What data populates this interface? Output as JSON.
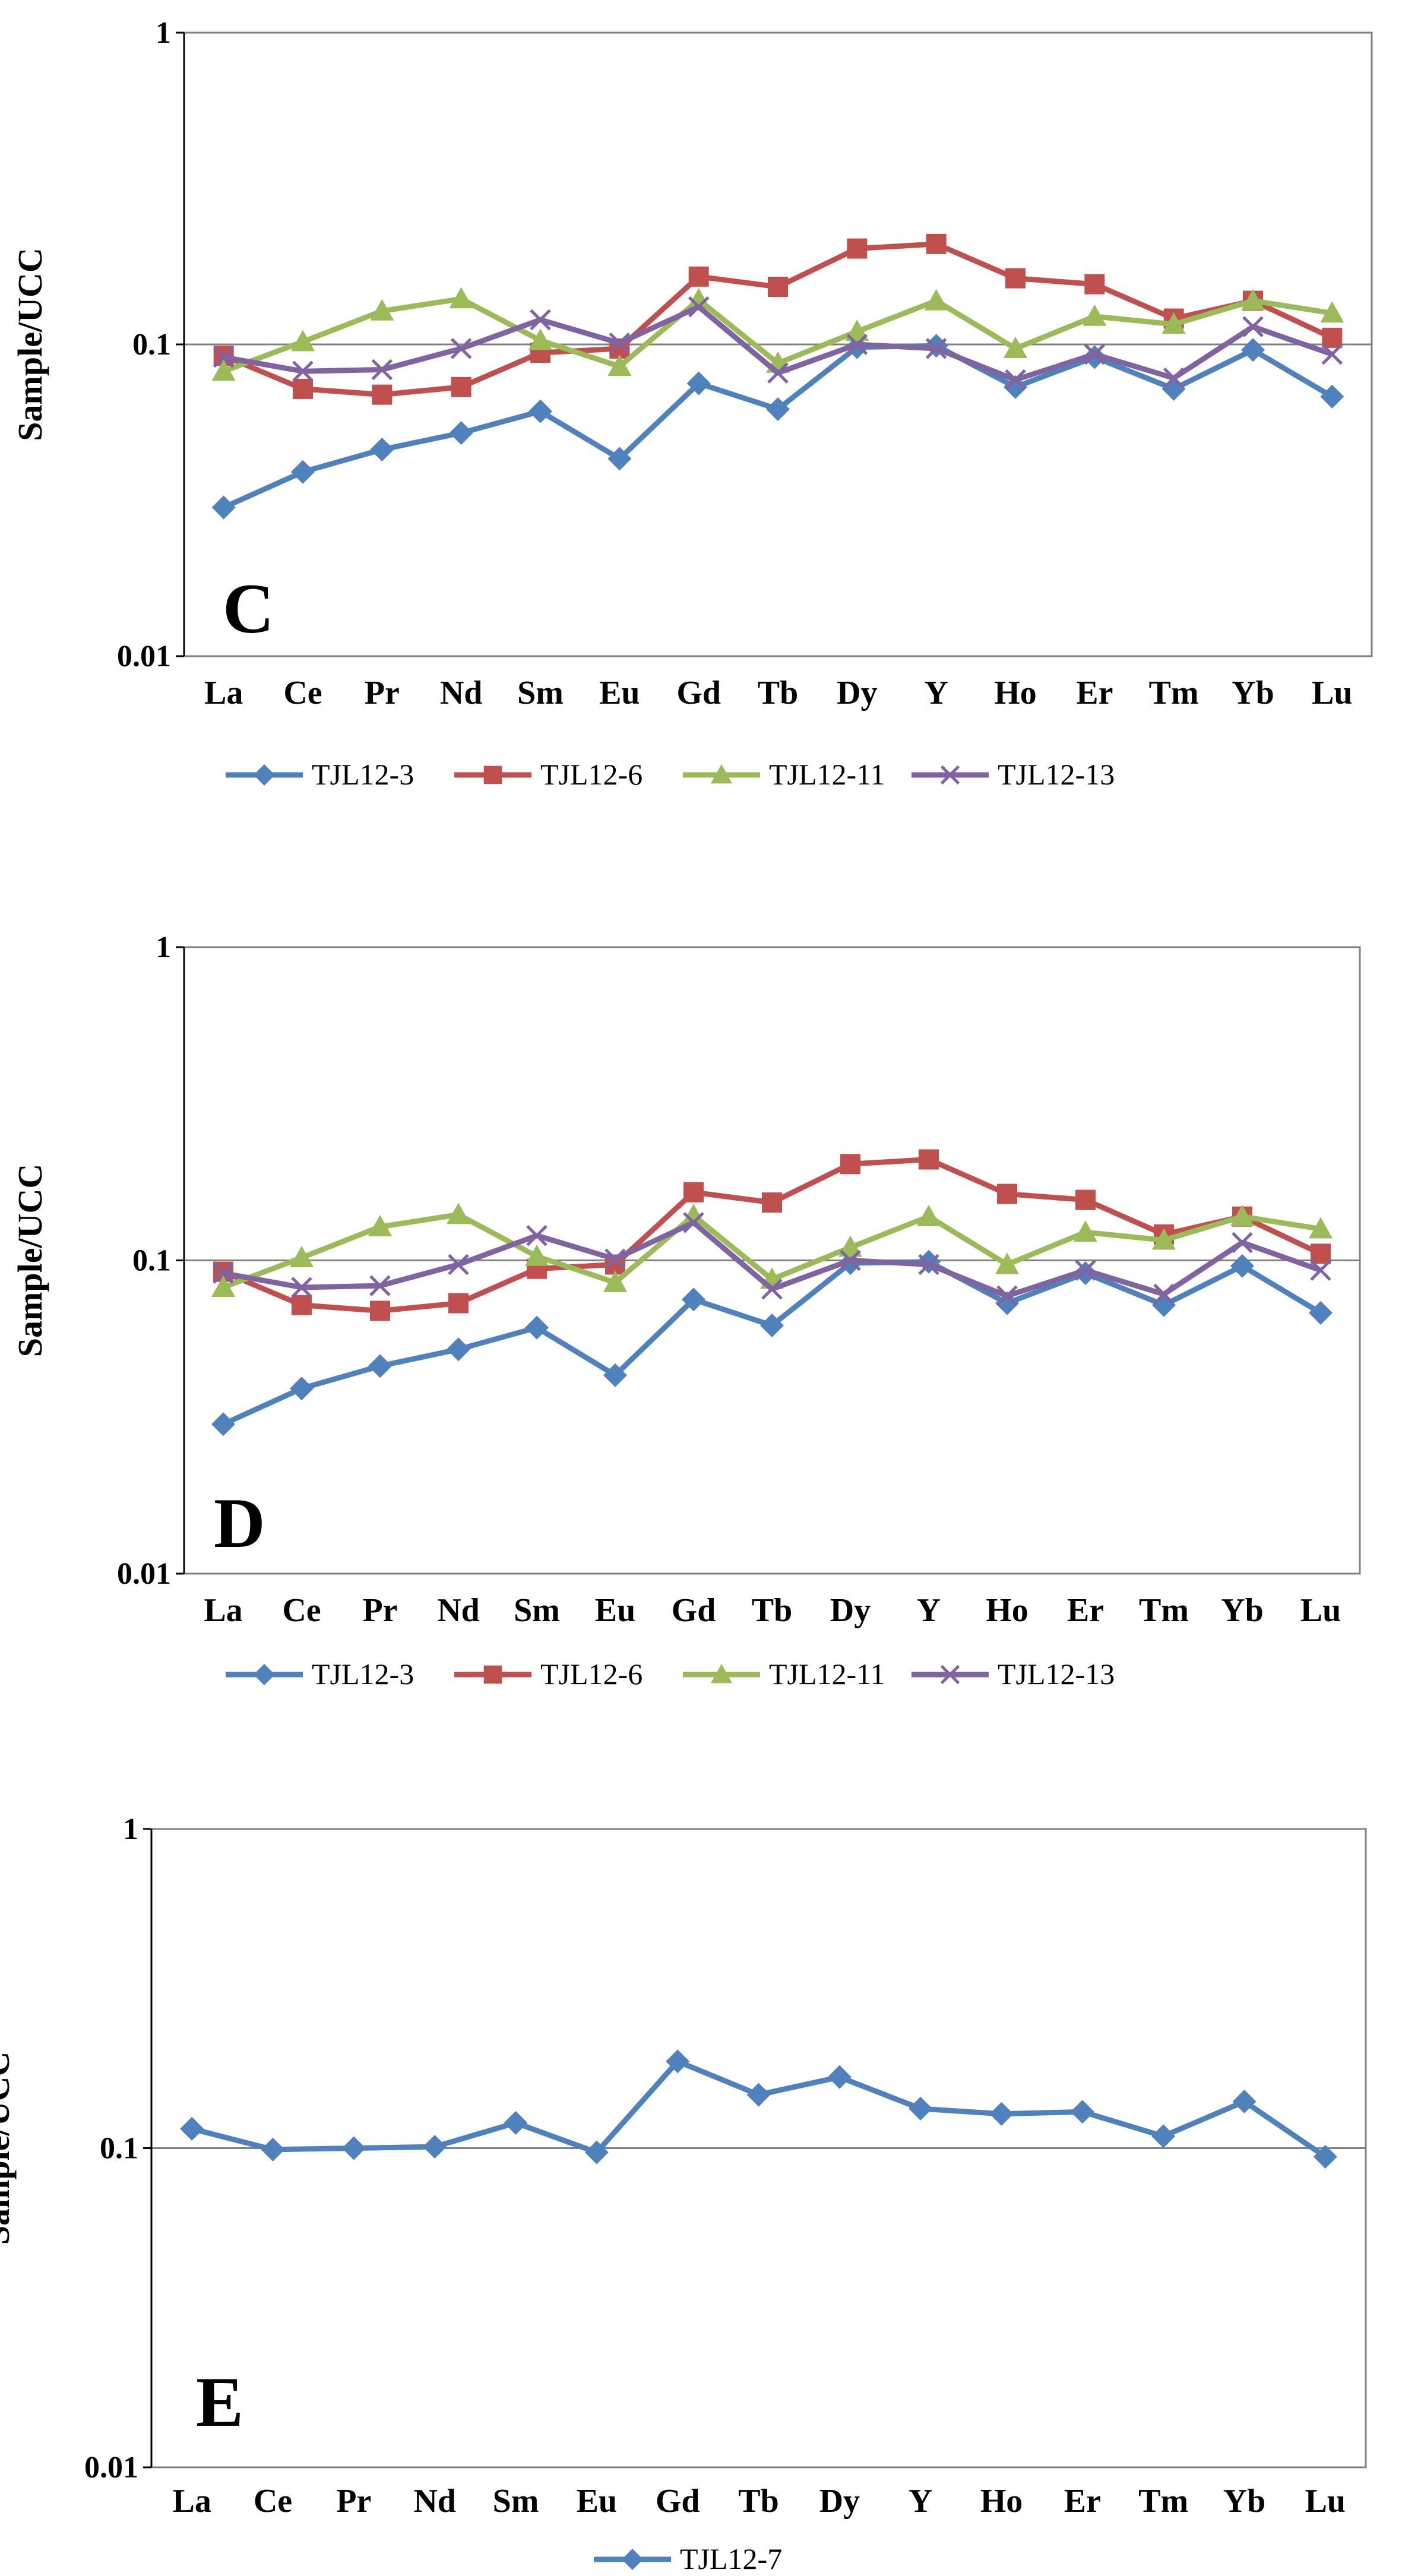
{
  "chart_data": [
    {
      "type": "line",
      "panel_label": "C",
      "ylabel": "Sample/UCC",
      "yscale": "log",
      "ylim": [
        0.01,
        1
      ],
      "yticks": [
        {
          "v": 1,
          "label": "1"
        },
        {
          "v": 0.1,
          "label": "0.1"
        },
        {
          "v": 0.01,
          "label": "0.01"
        }
      ],
      "grid": "horizontal at 0.1",
      "categories": [
        "La",
        "Ce",
        "Pr",
        "Nd",
        "Sm",
        "Eu",
        "Gd",
        "Tb",
        "Dy",
        "Y",
        "Ho",
        "Er",
        "Tm",
        "Yb",
        "Lu"
      ],
      "legend_position": "bottom",
      "series": [
        {
          "name": "TJL12-3",
          "color": "#4F81BD",
          "marker": "diamond",
          "values": [
            0.03,
            0.039,
            0.046,
            0.052,
            0.061,
            0.043,
            0.075,
            0.062,
            0.098,
            0.099,
            0.073,
            0.091,
            0.072,
            0.096,
            0.068
          ]
        },
        {
          "name": "TJL12-6",
          "color": "#C0504D",
          "marker": "square",
          "values": [
            0.092,
            0.072,
            0.069,
            0.073,
            0.094,
            0.097,
            0.165,
            0.153,
            0.203,
            0.21,
            0.163,
            0.156,
            0.121,
            0.138,
            0.105
          ]
        },
        {
          "name": "TJL12-11",
          "color": "#9BBB59",
          "marker": "triangle",
          "values": [
            0.082,
            0.102,
            0.128,
            0.14,
            0.103,
            0.085,
            0.139,
            0.087,
            0.11,
            0.138,
            0.097,
            0.123,
            0.116,
            0.138,
            0.126
          ]
        },
        {
          "name": "TJL12-13",
          "color": "#8064A2",
          "marker": "x",
          "values": [
            0.091,
            0.082,
            0.083,
            0.097,
            0.12,
            0.101,
            0.132,
            0.081,
            0.1,
            0.097,
            0.077,
            0.093,
            0.078,
            0.114,
            0.093
          ]
        }
      ]
    },
    {
      "type": "line",
      "panel_label": "D",
      "ylabel": "Sample/UCC",
      "yscale": "log",
      "ylim": [
        0.01,
        1
      ],
      "yticks": [
        {
          "v": 1,
          "label": "1"
        },
        {
          "v": 0.1,
          "label": "0.1"
        },
        {
          "v": 0.01,
          "label": "0.01"
        }
      ],
      "grid": "horizontal at 0.1",
      "categories": [
        "La",
        "Ce",
        "Pr",
        "Nd",
        "Sm",
        "Eu",
        "Gd",
        "Tb",
        "Dy",
        "Y",
        "Ho",
        "Er",
        "Tm",
        "Yb",
        "Lu"
      ],
      "legend_position": "bottom",
      "series": [
        {
          "name": "TJL12-3",
          "color": "#4F81BD",
          "marker": "diamond",
          "values": [
            0.03,
            0.039,
            0.046,
            0.052,
            0.061,
            0.043,
            0.075,
            0.062,
            0.098,
            0.099,
            0.073,
            0.091,
            0.072,
            0.096,
            0.068
          ]
        },
        {
          "name": "TJL12-6",
          "color": "#C0504D",
          "marker": "square",
          "values": [
            0.092,
            0.072,
            0.069,
            0.073,
            0.094,
            0.097,
            0.165,
            0.153,
            0.203,
            0.21,
            0.163,
            0.156,
            0.121,
            0.138,
            0.105
          ]
        },
        {
          "name": "TJL12-11",
          "color": "#9BBB59",
          "marker": "triangle",
          "values": [
            0.082,
            0.102,
            0.128,
            0.14,
            0.103,
            0.085,
            0.139,
            0.087,
            0.11,
            0.138,
            0.097,
            0.123,
            0.116,
            0.138,
            0.126
          ]
        },
        {
          "name": "TJL12-13",
          "color": "#8064A2",
          "marker": "x",
          "values": [
            0.091,
            0.082,
            0.083,
            0.097,
            0.12,
            0.101,
            0.132,
            0.081,
            0.1,
            0.097,
            0.077,
            0.093,
            0.078,
            0.114,
            0.093
          ]
        }
      ]
    },
    {
      "type": "line",
      "panel_label": "E",
      "ylabel": "Sample/UCC",
      "yscale": "log",
      "ylim": [
        0.01,
        1
      ],
      "yticks": [
        {
          "v": 1,
          "label": "1"
        },
        {
          "v": 0.1,
          "label": "0.1"
        },
        {
          "v": 0.01,
          "label": "0.01"
        }
      ],
      "grid": "horizontal at 0.1",
      "categories": [
        "La",
        "Ce",
        "Pr",
        "Nd",
        "Sm",
        "Eu",
        "Gd",
        "Tb",
        "Dy",
        "Y",
        "Ho",
        "Er",
        "Tm",
        "Yb",
        "Lu"
      ],
      "legend_position": "bottom",
      "series": [
        {
          "name": "TJL12-7",
          "color": "#4F81BD",
          "marker": "diamond",
          "values": [
            0.115,
            0.099,
            0.1,
            0.101,
            0.12,
            0.097,
            0.187,
            0.147,
            0.167,
            0.133,
            0.128,
            0.13,
            0.109,
            0.14,
            0.094
          ]
        }
      ]
    }
  ]
}
